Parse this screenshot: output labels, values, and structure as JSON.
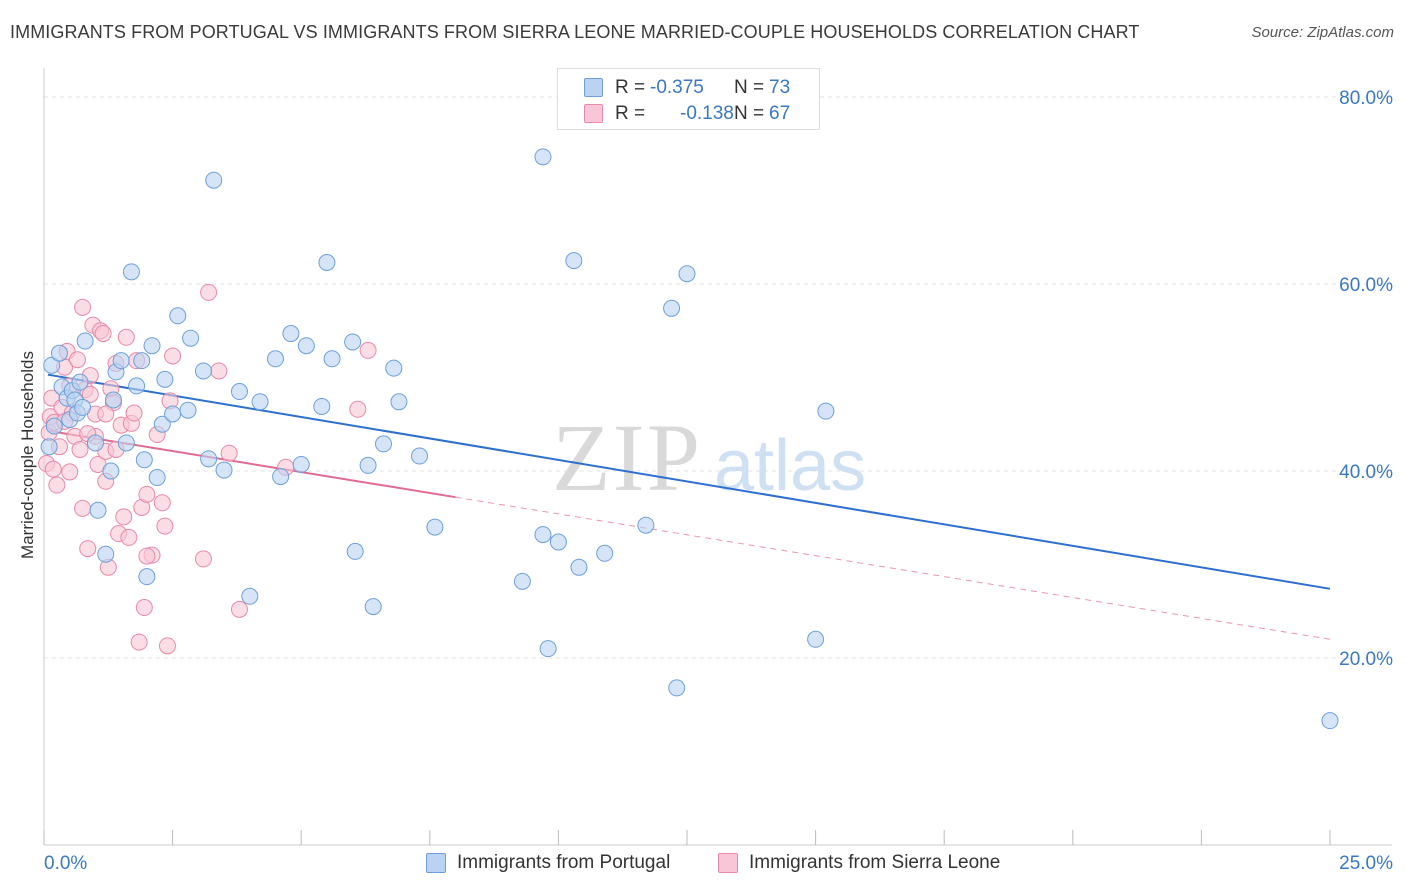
{
  "title": "IMMIGRANTS FROM PORTUGAL VS IMMIGRANTS FROM SIERRA LEONE MARRIED-COUPLE HOUSEHOLDS CORRELATION CHART",
  "source": "Source: ZipAtlas.com",
  "watermark": {
    "zip": "ZIP",
    "atlas": "atlas"
  },
  "legend": {
    "r_label": "R =",
    "n_label": "N =",
    "portugal": {
      "r": "-0.375",
      "n": "73"
    },
    "sierra_leone": {
      "r": "-0.138",
      "n": "67"
    }
  },
  "colors": {
    "portugal_fill": "#b9d3f1",
    "portugal_stroke": "#6e9fd9",
    "portugal_line": "#2d6fce",
    "sierra_fill": "#f8c6d6",
    "sierra_stroke": "#e88aa8",
    "sierra_line": "#e06a93",
    "grid": "#e3e3e3",
    "tick_label": "#3b78c2"
  },
  "chart_data": {
    "type": "scatter",
    "title": "IMMIGRANTS FROM PORTUGAL VS IMMIGRANTS FROM SIERRA LEONE MARRIED-COUPLE HOUSEHOLDS CORRELATION CHART",
    "xlabel": "",
    "ylabel": "Married-couple Households",
    "xlim": [
      0,
      25
    ],
    "ylim": [
      0,
      80
    ],
    "x_tick_labels": [
      "0.0%",
      "25.0%"
    ],
    "y_ticks": [
      20,
      40,
      60,
      80
    ],
    "y_tick_labels": [
      "20.0%",
      "40.0%",
      "60.0%",
      "80.0%"
    ],
    "grid": true,
    "legend_position": "top-center and bottom",
    "series": [
      {
        "name": "Immigrants from Portugal",
        "r": -0.375,
        "n": 73,
        "trend": {
          "x": [
            0.0,
            25.0
          ],
          "y": [
            50.3,
            27.4
          ],
          "style": "solid"
        },
        "points": [
          [
            0.1,
            42.6
          ],
          [
            0.15,
            51.3
          ],
          [
            0.2,
            44.8
          ],
          [
            0.3,
            52.6
          ],
          [
            0.35,
            49.0
          ],
          [
            0.45,
            47.8
          ],
          [
            0.5,
            45.5
          ],
          [
            0.55,
            48.6
          ],
          [
            0.6,
            47.6
          ],
          [
            0.65,
            46.2
          ],
          [
            0.7,
            49.5
          ],
          [
            0.75,
            46.8
          ],
          [
            0.8,
            53.9
          ],
          [
            1.0,
            43.0
          ],
          [
            1.05,
            35.8
          ],
          [
            1.2,
            31.1
          ],
          [
            1.3,
            40.0
          ],
          [
            1.35,
            47.6
          ],
          [
            1.4,
            50.6
          ],
          [
            1.5,
            51.8
          ],
          [
            1.6,
            43.0
          ],
          [
            1.7,
            61.3
          ],
          [
            1.8,
            49.1
          ],
          [
            1.9,
            51.8
          ],
          [
            1.95,
            41.2
          ],
          [
            2.0,
            28.7
          ],
          [
            2.1,
            53.4
          ],
          [
            2.2,
            39.3
          ],
          [
            2.3,
            45.0
          ],
          [
            2.35,
            49.8
          ],
          [
            2.5,
            46.1
          ],
          [
            2.6,
            56.6
          ],
          [
            2.8,
            46.5
          ],
          [
            2.85,
            54.2
          ],
          [
            3.1,
            50.7
          ],
          [
            3.2,
            41.3
          ],
          [
            3.3,
            71.1
          ],
          [
            3.5,
            40.1
          ],
          [
            3.8,
            48.5
          ],
          [
            4.0,
            26.6
          ],
          [
            4.2,
            47.4
          ],
          [
            4.5,
            52.0
          ],
          [
            4.6,
            39.4
          ],
          [
            4.8,
            54.7
          ],
          [
            5.0,
            40.7
          ],
          [
            5.1,
            53.4
          ],
          [
            5.4,
            46.9
          ],
          [
            5.5,
            62.3
          ],
          [
            5.6,
            52.0
          ],
          [
            6.0,
            53.8
          ],
          [
            6.05,
            31.4
          ],
          [
            6.3,
            40.6
          ],
          [
            6.4,
            25.5
          ],
          [
            6.6,
            42.9
          ],
          [
            6.8,
            51.0
          ],
          [
            6.9,
            47.4
          ],
          [
            7.3,
            41.6
          ],
          [
            7.6,
            34.0
          ],
          [
            9.7,
            73.6
          ],
          [
            9.3,
            28.2
          ],
          [
            9.7,
            33.2
          ],
          [
            9.8,
            21.0
          ],
          [
            10.0,
            32.4
          ],
          [
            10.3,
            62.5
          ],
          [
            10.4,
            29.7
          ],
          [
            10.9,
            31.2
          ],
          [
            11.7,
            34.2
          ],
          [
            12.2,
            57.4
          ],
          [
            12.3,
            16.8
          ],
          [
            12.5,
            61.1
          ],
          [
            15.0,
            22.0
          ],
          [
            15.2,
            46.4
          ],
          [
            25.0,
            13.3
          ]
        ]
      },
      {
        "name": "Immigrants from Sierra Leone",
        "r": -0.138,
        "n": 67,
        "trend": {
          "x": [
            0.0,
            8.0
          ],
          "y": [
            44.3,
            37.2
          ],
          "style": "solid",
          "extension": {
            "x": [
              8.0,
              25.0
            ],
            "y": [
              37.2,
              22.0
            ],
            "style": "dashed"
          }
        },
        "points": [
          [
            0.05,
            40.8
          ],
          [
            0.1,
            44.1
          ],
          [
            0.12,
            45.8
          ],
          [
            0.15,
            47.8
          ],
          [
            0.18,
            40.2
          ],
          [
            0.2,
            45.2
          ],
          [
            0.25,
            38.5
          ],
          [
            0.3,
            42.6
          ],
          [
            0.35,
            46.8
          ],
          [
            0.4,
            51.1
          ],
          [
            0.45,
            52.8
          ],
          [
            0.5,
            49.1
          ],
          [
            0.5,
            39.9
          ],
          [
            0.55,
            46.2
          ],
          [
            0.6,
            43.7
          ],
          [
            0.65,
            51.9
          ],
          [
            0.7,
            42.3
          ],
          [
            0.75,
            57.5
          ],
          [
            0.75,
            36.0
          ],
          [
            0.8,
            48.7
          ],
          [
            0.85,
            31.7
          ],
          [
            0.9,
            48.2
          ],
          [
            0.9,
            50.2
          ],
          [
            0.95,
            55.6
          ],
          [
            1.0,
            46.1
          ],
          [
            1.0,
            43.7
          ],
          [
            1.05,
            40.7
          ],
          [
            1.1,
            55.0
          ],
          [
            1.15,
            54.7
          ],
          [
            1.2,
            42.1
          ],
          [
            1.2,
            38.9
          ],
          [
            1.25,
            29.7
          ],
          [
            1.3,
            48.8
          ],
          [
            1.35,
            47.3
          ],
          [
            1.4,
            51.5
          ],
          [
            1.45,
            33.3
          ],
          [
            1.5,
            44.9
          ],
          [
            1.55,
            35.1
          ],
          [
            1.6,
            54.3
          ],
          [
            1.65,
            32.9
          ],
          [
            1.7,
            45.1
          ],
          [
            1.75,
            46.2
          ],
          [
            1.8,
            51.8
          ],
          [
            1.85,
            21.7
          ],
          [
            1.9,
            36.1
          ],
          [
            1.95,
            25.4
          ],
          [
            2.0,
            37.5
          ],
          [
            2.1,
            31.0
          ],
          [
            2.2,
            43.9
          ],
          [
            2.3,
            36.6
          ],
          [
            2.35,
            34.1
          ],
          [
            2.4,
            21.3
          ],
          [
            2.45,
            47.5
          ],
          [
            2.5,
            52.3
          ],
          [
            3.1,
            30.6
          ],
          [
            3.2,
            59.1
          ],
          [
            3.4,
            50.7
          ],
          [
            3.6,
            41.9
          ],
          [
            3.8,
            25.2
          ],
          [
            4.7,
            40.4
          ],
          [
            6.1,
            46.6
          ],
          [
            6.3,
            52.9
          ],
          [
            1.2,
            46.1
          ],
          [
            0.4,
            45.3
          ],
          [
            0.85,
            44.0
          ],
          [
            1.4,
            42.3
          ],
          [
            2.0,
            30.9
          ]
        ]
      }
    ]
  },
  "bottom_legend": {
    "portugal": "Immigrants from Portugal",
    "sierra_leone": "Immigrants from Sierra Leone"
  }
}
